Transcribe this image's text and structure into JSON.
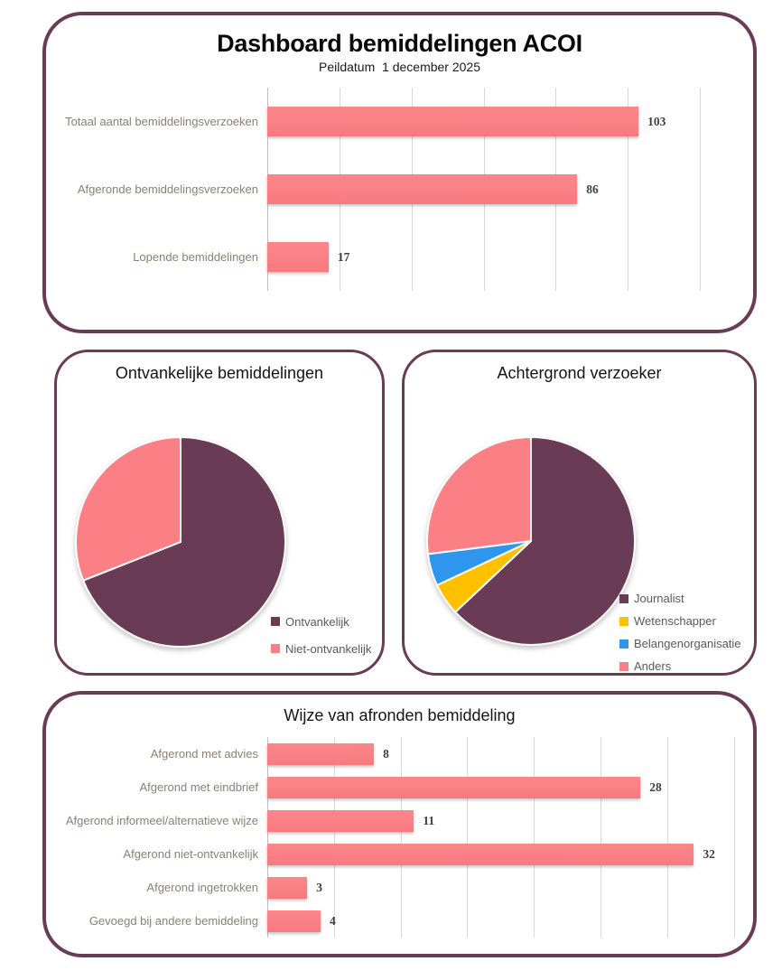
{
  "header": {
    "title": "Dashboard bemiddelingen ACOI",
    "subtitle": "Peildatum  1 december 2025"
  },
  "colors": {
    "panel_border": "#683C55",
    "bar_pink": "#FA8085",
    "pie_dark": "#6A3B55",
    "pie_pink": "#FA8085",
    "pie_yellow": "#FFC000",
    "pie_blue": "#2E96EC",
    "label_gray": "#8A8177",
    "value_gray": "#3F3F3F",
    "legend_gray": "#595959"
  },
  "chart_data": [
    {
      "type": "bar",
      "orientation": "horizontal",
      "title": "",
      "categories": [
        "Totaal aantal bemiddelingsverzoeken",
        "Afgeronde bemiddelingsverzoeken",
        "Lopende bemiddelingen"
      ],
      "values": [
        103,
        86,
        17
      ],
      "value_labels": [
        "103",
        "86",
        "17"
      ],
      "xlim": [
        0,
        125
      ],
      "grid_step": 20,
      "grid_max": 120,
      "grid_on": true,
      "bar_color": "#FA8085"
    },
    {
      "type": "pie",
      "title": "Ontvankelijke bemiddelingen",
      "slices": [
        {
          "label": "Ontvankelijk",
          "pct": 69,
          "pct_text": "69%",
          "color": "#6A3B55"
        },
        {
          "label": "Niet-ontvankelijk",
          "pct": 31,
          "pct_text": "31%",
          "color": "#FA8085"
        }
      ],
      "start_angle_deg": 0,
      "direction": "clockwise",
      "legend_position": "bottom-right"
    },
    {
      "type": "pie",
      "title": "Achtergrond verzoeker",
      "slices": [
        {
          "label": "Journalist",
          "pct": 63,
          "pct_text": "63%",
          "color": "#6A3B55"
        },
        {
          "label": "Wetenschapper",
          "pct": 5,
          "pct_text": "5%",
          "color": "#FFC000"
        },
        {
          "label": "Belangenorganisatie",
          "pct": 5,
          "pct_text": "5%",
          "color": "#2E96EC"
        },
        {
          "label": "Anders",
          "pct": 27,
          "pct_text": "27%",
          "color": "#FA8085"
        }
      ],
      "start_angle_deg": 0,
      "direction": "clockwise",
      "legend_position": "bottom-right"
    },
    {
      "type": "bar",
      "orientation": "horizontal",
      "title": "Wijze van afronden bemiddeling",
      "categories": [
        "Afgerond met advies",
        "Afgerond met eindbrief",
        "Afgerond informeel/alternatieve wijze",
        "Afgerond niet-ontvankelijk",
        "Afgerond ingetrokken",
        "Gevoegd bij andere bemiddeling"
      ],
      "values": [
        8,
        28,
        11,
        32,
        3,
        4
      ],
      "value_labels": [
        "8",
        "28",
        "11",
        "32",
        "3",
        "4"
      ],
      "xlim": [
        0,
        35.5
      ],
      "grid_step": 5,
      "grid_max": 35,
      "grid_on": true,
      "bar_color": "#FA8085"
    }
  ]
}
